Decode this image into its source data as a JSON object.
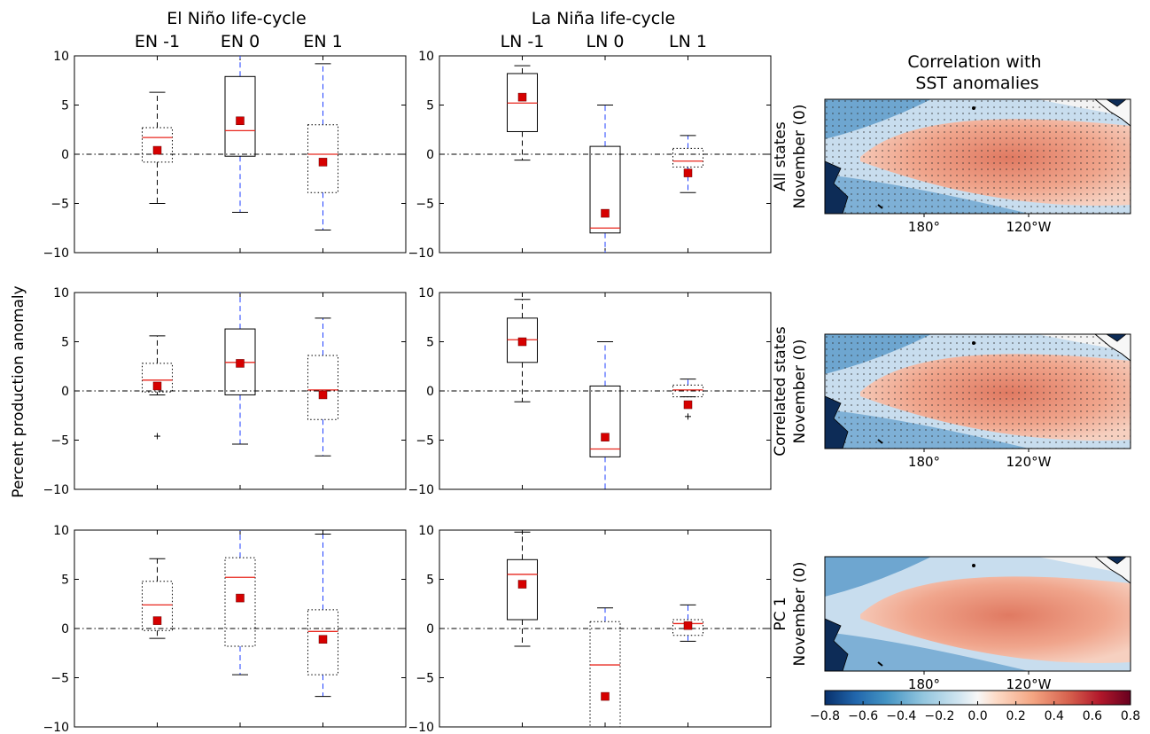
{
  "figure": {
    "ylabel": "Percent production anomaly",
    "col_titles": [
      "El Niño life-cycle",
      "La Niña life-cycle"
    ],
    "map_title": "Correlation with\nSST anomalies",
    "row_labels": [
      [
        "All states",
        "November (0)"
      ],
      [
        "Correlated states",
        "November (0)"
      ],
      [
        "PC 1",
        "November (0)"
      ]
    ],
    "map_xticks": [
      "180°",
      "120°W"
    ],
    "colorbar": {
      "min": -0.8,
      "max": 0.8,
      "ticks": [
        "−0.8",
        "−0.6",
        "−0.4",
        "−0.2",
        "0.0",
        "0.2",
        "0.4",
        "0.6",
        "0.8"
      ],
      "colors": [
        "#08306b",
        "#2166ac",
        "#4393c3",
        "#92c5de",
        "#d1e5f0",
        "#f7f7f7",
        "#fddbc7",
        "#f4a582",
        "#d6604d",
        "#b2182b",
        "#67001f"
      ]
    }
  },
  "chart_data": [
    {
      "type": "box",
      "row": 0,
      "panel": "El Niño",
      "categories": [
        "EN -1",
        "EN 0",
        "EN 1"
      ],
      "ylim": [
        -10,
        10
      ],
      "yticks": [
        "10",
        "5",
        "0",
        "−5",
        "−10"
      ],
      "boxes": [
        {
          "q1": -0.8,
          "median": 1.7,
          "q3": 2.7,
          "wlo": -5.0,
          "whi": 6.3,
          "mean": 0.4,
          "style": "dotted",
          "wcolor": "#000000",
          "fliers": []
        },
        {
          "q1": -0.2,
          "median": 2.4,
          "q3": 7.9,
          "wlo": -5.9,
          "whi": 10.0,
          "mean": 3.4,
          "style": "solid",
          "wcolor": "#1f3fff",
          "fliers": []
        },
        {
          "q1": -3.9,
          "median": 0.0,
          "q3": 3.0,
          "wlo": -7.7,
          "whi": 9.2,
          "mean": -0.8,
          "style": "dotted",
          "wcolor": "#1f3fff",
          "fliers": []
        }
      ]
    },
    {
      "type": "box",
      "row": 0,
      "panel": "La Niña",
      "categories": [
        "LN -1",
        "LN 0",
        "LN 1"
      ],
      "ylim": [
        -10,
        10
      ],
      "yticks": [
        "10",
        "5",
        "0",
        "−5",
        "−10"
      ],
      "boxes": [
        {
          "q1": 2.3,
          "median": 5.2,
          "q3": 8.2,
          "wlo": -0.6,
          "whi": 9.0,
          "mean": 5.8,
          "style": "solid",
          "wcolor": "#000000",
          "fliers": []
        },
        {
          "q1": -8.0,
          "median": -7.5,
          "q3": 0.8,
          "wlo": -10.0,
          "whi": 5.0,
          "mean": -6.0,
          "style": "solid",
          "wcolor": "#1f3fff",
          "fliers": []
        },
        {
          "q1": -1.3,
          "median": -0.7,
          "q3": 0.6,
          "wlo": -3.9,
          "whi": 1.9,
          "mean": -1.9,
          "style": "dotted",
          "wcolor": "#1f3fff",
          "fliers": []
        }
      ]
    },
    {
      "type": "box",
      "row": 1,
      "panel": "El Niño",
      "categories": [
        "",
        "",
        ""
      ],
      "ylim": [
        -10,
        10
      ],
      "yticks": [
        "10",
        "5",
        "0",
        "−5",
        "−10"
      ],
      "boxes": [
        {
          "q1": -0.1,
          "median": 1.1,
          "q3": 2.8,
          "wlo": -0.4,
          "whi": 5.6,
          "mean": 0.5,
          "style": "dotted",
          "wcolor": "#000000",
          "fliers": [
            -4.6
          ]
        },
        {
          "q1": -0.4,
          "median": 2.9,
          "q3": 6.3,
          "wlo": -5.4,
          "whi": 10.0,
          "mean": 2.8,
          "style": "solid",
          "wcolor": "#1f3fff",
          "fliers": []
        },
        {
          "q1": -2.9,
          "median": 0.1,
          "q3": 3.6,
          "wlo": -6.6,
          "whi": 7.4,
          "mean": -0.4,
          "style": "dotted",
          "wcolor": "#1f3fff",
          "fliers": []
        }
      ]
    },
    {
      "type": "box",
      "row": 1,
      "panel": "La Niña",
      "categories": [
        "",
        "",
        ""
      ],
      "ylim": [
        -10,
        10
      ],
      "yticks": [
        "10",
        "5",
        "0",
        "−5",
        "−10"
      ],
      "boxes": [
        {
          "q1": 2.9,
          "median": 5.2,
          "q3": 7.4,
          "wlo": -1.1,
          "whi": 9.3,
          "mean": 5.0,
          "style": "solid",
          "wcolor": "#000000",
          "fliers": []
        },
        {
          "q1": -6.7,
          "median": -5.9,
          "q3": 0.5,
          "wlo": -10.0,
          "whi": 5.0,
          "mean": -4.7,
          "style": "solid",
          "wcolor": "#1f3fff",
          "fliers": []
        },
        {
          "q1": -0.6,
          "median": 0.1,
          "q3": 0.6,
          "wlo": -0.6,
          "whi": 1.2,
          "mean": -1.4,
          "style": "dotted",
          "wcolor": "#1f3fff",
          "fliers": [
            -2.6
          ]
        }
      ]
    },
    {
      "type": "box",
      "row": 2,
      "panel": "El Niño",
      "categories": [
        "",
        "",
        ""
      ],
      "ylim": [
        -10,
        10
      ],
      "yticks": [
        "10",
        "5",
        "0",
        "−5",
        "−10"
      ],
      "boxes": [
        {
          "q1": -0.2,
          "median": 2.4,
          "q3": 4.8,
          "wlo": -1.0,
          "whi": 7.1,
          "mean": 0.8,
          "style": "dotted",
          "wcolor": "#000000",
          "fliers": []
        },
        {
          "q1": -1.8,
          "median": 5.2,
          "q3": 7.2,
          "wlo": -4.7,
          "whi": 10.0,
          "mean": 3.1,
          "style": "dotted",
          "wcolor": "#1f3fff",
          "fliers": []
        },
        {
          "q1": -4.7,
          "median": -0.3,
          "q3": 1.9,
          "wlo": -6.9,
          "whi": 9.6,
          "mean": -1.1,
          "style": "dotted",
          "wcolor": "#1f3fff",
          "fliers": []
        }
      ]
    },
    {
      "type": "box",
      "row": 2,
      "panel": "La Niña",
      "categories": [
        "",
        "",
        ""
      ],
      "ylim": [
        -10,
        10
      ],
      "yticks": [
        "10",
        "5",
        "0",
        "−5",
        "−10"
      ],
      "boxes": [
        {
          "q1": 0.9,
          "median": 5.5,
          "q3": 7.0,
          "wlo": -1.8,
          "whi": 9.8,
          "mean": 4.5,
          "style": "solid",
          "wcolor": "#000000",
          "fliers": []
        },
        {
          "q1": -10.0,
          "median": -3.7,
          "q3": 0.7,
          "wlo": -10.0,
          "whi": 2.1,
          "mean": -6.9,
          "style": "dotted",
          "wcolor": "#1f3fff",
          "fliers": []
        },
        {
          "q1": -0.7,
          "median": 0.5,
          "q3": 0.9,
          "wlo": -1.3,
          "whi": 2.4,
          "mean": 0.3,
          "style": "dotted",
          "wcolor": "#1f3fff",
          "fliers": []
        }
      ]
    }
  ]
}
